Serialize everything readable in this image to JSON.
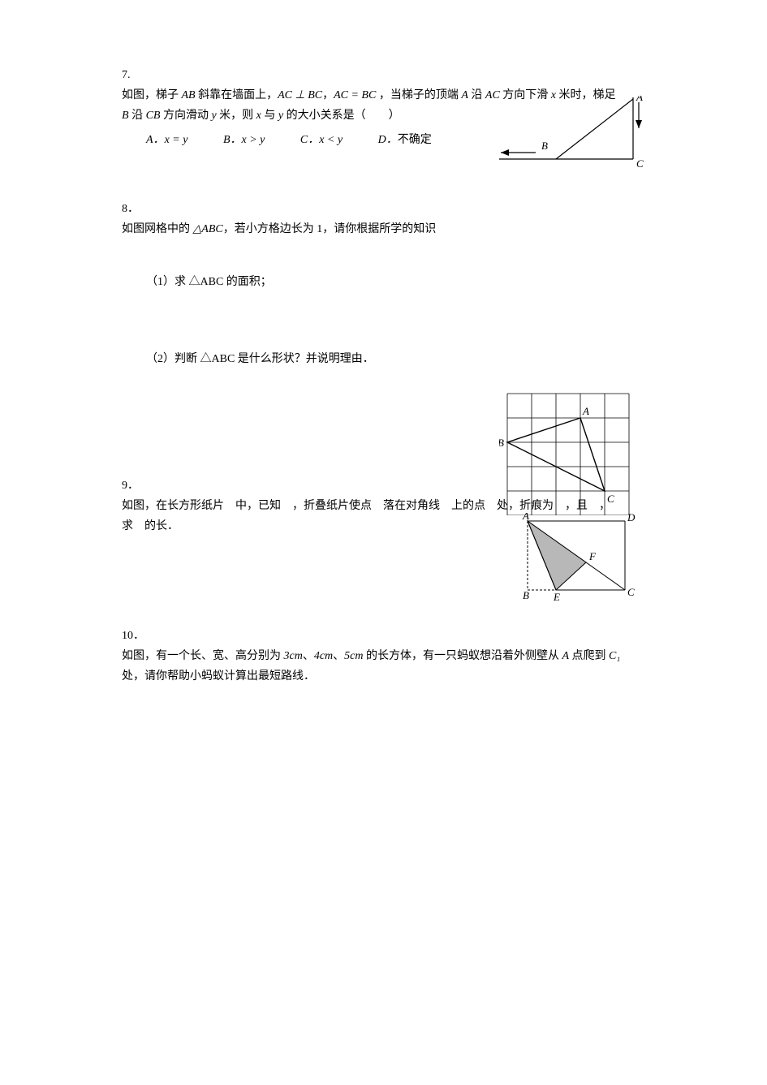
{
  "q7": {
    "num": "7.",
    "text_parts": [
      "如图，梯子 ",
      " 斜靠在墙面上，",
      "，",
      " ，当梯子的顶端 ",
      " 沿 ",
      " 方向下滑 ",
      " 米时，梯足 ",
      " 沿 ",
      " 方向滑动 ",
      " 米，则 ",
      " 与 ",
      " 的大小关系是（　　）"
    ],
    "math": {
      "AB": "AB",
      "AC_perp_BC": "AC ⊥ BC",
      "AC_eq_BC": "AC = BC",
      "A": "A",
      "AC": "AC",
      "x": "x",
      "B": "B",
      "CB": "CB",
      "y": "y"
    },
    "options": {
      "A": {
        "letter": "A．",
        "text": "x = y"
      },
      "B": {
        "letter": "B．",
        "text": "x > y"
      },
      "C": {
        "letter": "C．",
        "text": "x < y"
      },
      "D": {
        "letter": "D．",
        "text": "不确定"
      }
    },
    "figure": {
      "labels": {
        "A": "A",
        "B": "B",
        "C": "C"
      },
      "stroke": "#000000",
      "stroke_width": 1.2
    }
  },
  "q8": {
    "num": "8．",
    "text_parts": [
      "如图网格中的 ",
      "，若小方格边长为 1，请你根据所学的知识"
    ],
    "math": {
      "triangle_ABC": "△ABC"
    },
    "sub1": {
      "label": "（1）",
      "text": "求 △ABC 的面积；"
    },
    "sub2": {
      "label": "（2）",
      "text": "判断 △ABC 是什么形状？并说明理由．"
    },
    "figure": {
      "labels": {
        "A": "A",
        "B": "B",
        "C": "C"
      },
      "grid_cells": 5,
      "cell_size": 30,
      "stroke": "#000000",
      "grid_stroke": "#000000",
      "grid_stroke_width": 0.8,
      "tri_stroke_width": 1.2,
      "vertices": {
        "A": [
          3,
          1
        ],
        "B": [
          0,
          2
        ],
        "C": [
          4,
          4
        ]
      }
    }
  },
  "q9": {
    "num": "9．",
    "text": "如图，在长方形纸片　中，已知　，折叠纸片使点　落在对角线　上的点　处，折痕为　，且　，求　的长．",
    "figure": {
      "labels": {
        "A": "A",
        "B": "B",
        "C": "C",
        "D": "D",
        "E": "E",
        "F": "F"
      },
      "fill": "#b8b8b8",
      "stroke": "#000000",
      "stroke_width": 1.0,
      "dash": "3,2"
    }
  },
  "q10": {
    "num": "10．",
    "text_parts": [
      "如图，有一个长、宽、高分别为 ",
      "、",
      "、",
      " 的长方体，有一只蚂蚁想沿着外侧壁从 ",
      " 点爬到 ",
      " 处，请你帮助小蚂蚁计算出最短路线．"
    ],
    "math": {
      "d1": "3cm",
      "d2": "4cm",
      "d3": "5cm",
      "A": "A",
      "C1": "C₁"
    }
  }
}
